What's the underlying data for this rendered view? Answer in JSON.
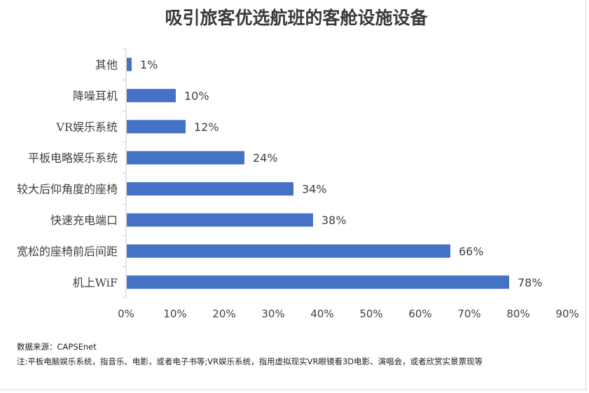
{
  "chart_data": {
    "type": "bar",
    "orientation": "horizontal",
    "title": "吸引旅客优选航班的客舱设施设备",
    "categories": [
      "其他",
      "降噪耳机",
      "VR娱乐系统",
      "平板电略娱乐系统",
      "较大后仰角度的座椅",
      "快速充电端口",
      "宽松的座椅前后间距",
      "机上WiF"
    ],
    "values": [
      1,
      10,
      12,
      24,
      34,
      38,
      66,
      78
    ],
    "value_labels": [
      "1%",
      "10%",
      "12%",
      "24%",
      "34%",
      "38%",
      "66%",
      "78%"
    ],
    "xlim": [
      0,
      90
    ],
    "x_ticks": [
      0,
      10,
      20,
      30,
      40,
      50,
      60,
      70,
      80,
      90
    ],
    "x_tick_labels": [
      "0%",
      "10%",
      "20%",
      "30%",
      "40%",
      "50%",
      "60%",
      "70%",
      "80%",
      "90%"
    ],
    "grid": false,
    "legend": "none",
    "bar_color": "#4472c4"
  },
  "notes": {
    "source": "数据来源：CAPSEnet",
    "footnote": "注:平板电脑娱乐系统，指音乐、电影，或者电子书等;VR娱乐系统，指用虚拟现实VR眼镜看3D电影、演唱会，或者欣赏实景票现等"
  }
}
